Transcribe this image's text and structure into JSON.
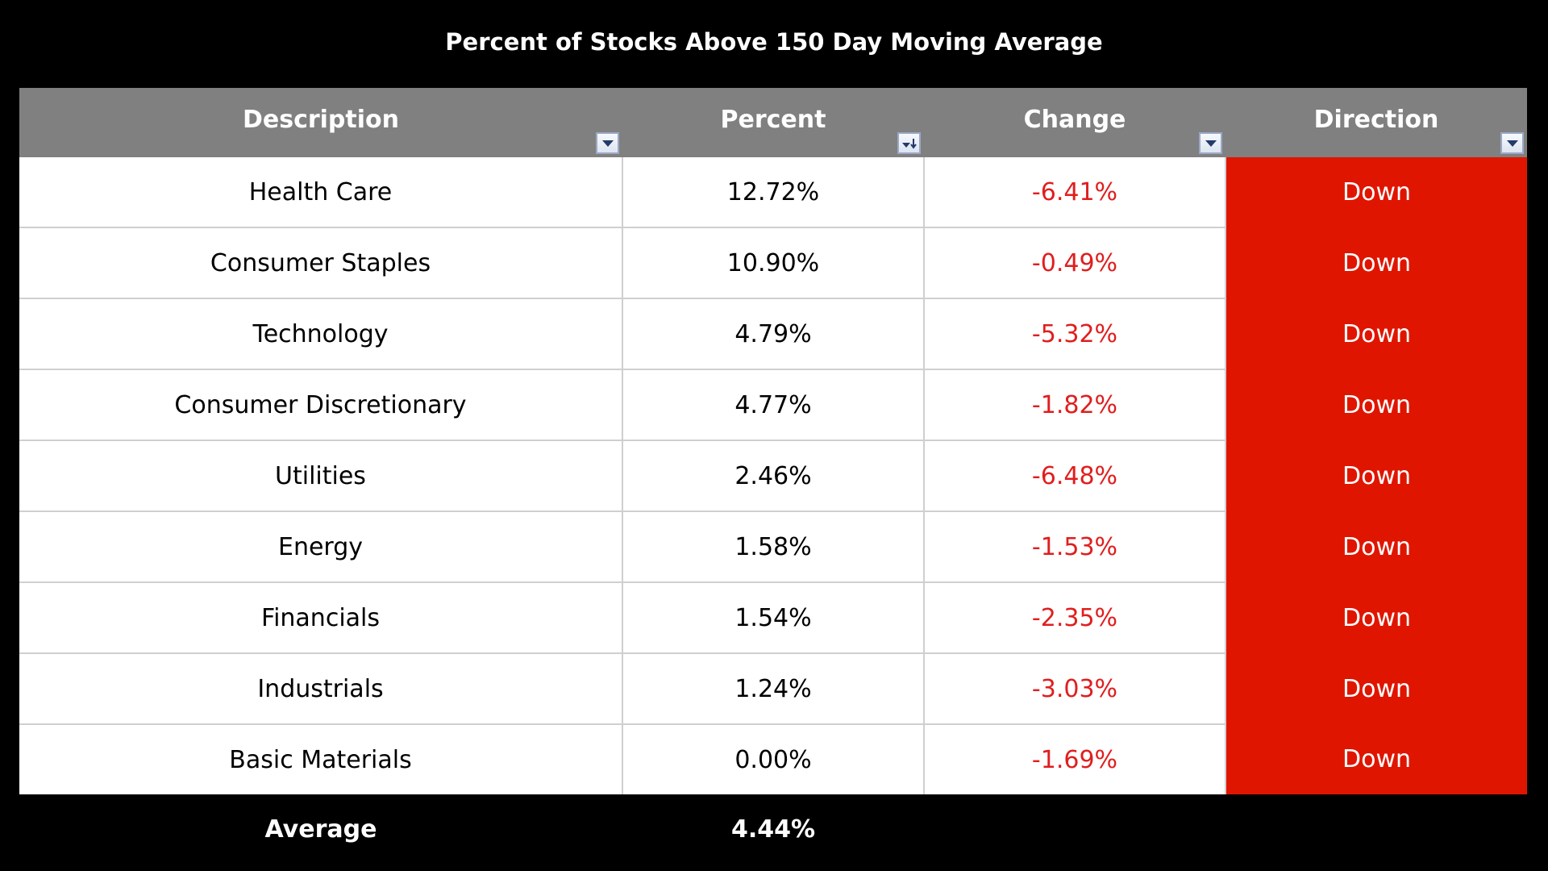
{
  "chart_data": {
    "type": "table",
    "title": "Percent of Stocks Above 150 Day Moving Average",
    "columns": [
      "Description",
      "Percent",
      "Change",
      "Direction"
    ],
    "rows": [
      {
        "description": "Health Care",
        "percent": "12.72%",
        "change": "-6.41%",
        "direction": "Down"
      },
      {
        "description": "Consumer Staples",
        "percent": "10.90%",
        "change": "-0.49%",
        "direction": "Down"
      },
      {
        "description": "Technology",
        "percent": "4.79%",
        "change": "-5.32%",
        "direction": "Down"
      },
      {
        "description": "Consumer Discretionary",
        "percent": "4.77%",
        "change": "-1.82%",
        "direction": "Down"
      },
      {
        "description": "Utilities",
        "percent": "2.46%",
        "change": "-6.48%",
        "direction": "Down"
      },
      {
        "description": "Energy",
        "percent": "1.58%",
        "change": "-1.53%",
        "direction": "Down"
      },
      {
        "description": "Financials",
        "percent": "1.54%",
        "change": "-2.35%",
        "direction": "Down"
      },
      {
        "description": "Industrials",
        "percent": "1.24%",
        "change": "-3.03%",
        "direction": "Down"
      },
      {
        "description": "Basic Materials",
        "percent": "0.00%",
        "change": "-1.69%",
        "direction": "Down"
      }
    ],
    "footer": {
      "label": "Average",
      "percent": "4.44%"
    },
    "colors": {
      "background": "#000000",
      "header_fill": "#808080",
      "negative_change_text": "#e01e1e",
      "direction_down_fill": "#e01500"
    },
    "filter_icons": [
      "chevron-down-icon",
      "sort-descending-icon",
      "chevron-down-icon",
      "chevron-down-icon"
    ]
  }
}
